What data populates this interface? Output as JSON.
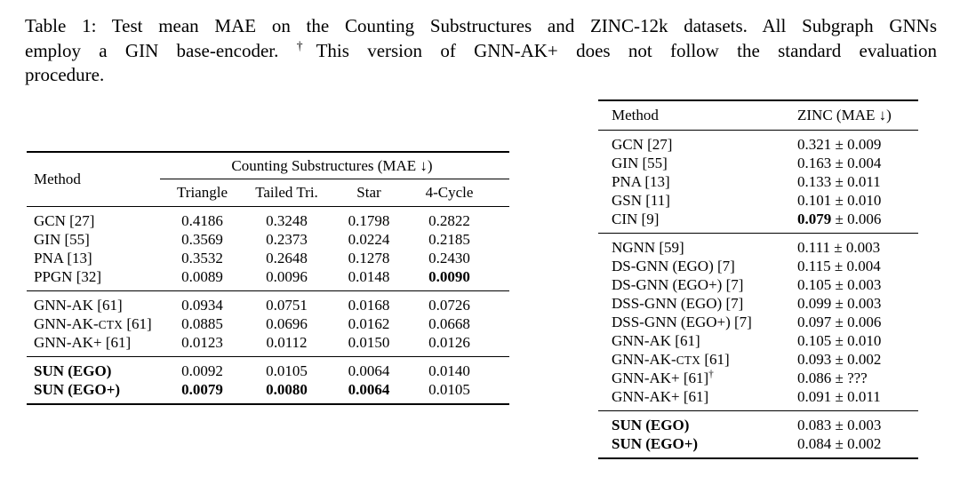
{
  "caption": {
    "label": "Table 1",
    "lines": [
      [
        {
          "t": "Table 1: Test mean MAE on the Counting Substructures and ZINC-12k datasets. All Subgraph GNNs"
        }
      ],
      [
        {
          "t": "employ a GIN base-encoder. "
        },
        {
          "t": "†",
          "sup": true
        },
        {
          "t": "This version of GNN-AK+ does not follow the standard evaluation"
        }
      ],
      [
        {
          "t": "procedure."
        }
      ]
    ]
  },
  "left_table": {
    "method_header": "Method",
    "span_header": "Counting Substructures (MAE ↓)",
    "columns": [
      "Triangle",
      "Tailed Tri.",
      "Star",
      "4-Cycle"
    ],
    "groups": [
      [
        {
          "method": [
            {
              "t": "GCN [27]"
            }
          ],
          "values": [
            [
              {
                "t": "0.4186"
              }
            ],
            [
              {
                "t": "0.3248"
              }
            ],
            [
              {
                "t": "0.1798"
              }
            ],
            [
              {
                "t": "0.2822"
              }
            ]
          ]
        },
        {
          "method": [
            {
              "t": "GIN [55]"
            }
          ],
          "values": [
            [
              {
                "t": "0.3569"
              }
            ],
            [
              {
                "t": "0.2373"
              }
            ],
            [
              {
                "t": "0.0224"
              }
            ],
            [
              {
                "t": "0.2185"
              }
            ]
          ]
        },
        {
          "method": [
            {
              "t": "PNA [13]"
            }
          ],
          "values": [
            [
              {
                "t": "0.3532"
              }
            ],
            [
              {
                "t": "0.2648"
              }
            ],
            [
              {
                "t": "0.1278"
              }
            ],
            [
              {
                "t": "0.2430"
              }
            ]
          ]
        },
        {
          "method": [
            {
              "t": "PPGN [32]"
            }
          ],
          "values": [
            [
              {
                "t": "0.0089"
              }
            ],
            [
              {
                "t": "0.0096"
              }
            ],
            [
              {
                "t": "0.0148"
              }
            ],
            [
              {
                "t": "0.0090",
                "b": true
              }
            ]
          ]
        }
      ],
      [
        {
          "method": [
            {
              "t": "GNN-AK [61]"
            }
          ],
          "values": [
            [
              {
                "t": "0.0934"
              }
            ],
            [
              {
                "t": "0.0751"
              }
            ],
            [
              {
                "t": "0.0168"
              }
            ],
            [
              {
                "t": "0.0726"
              }
            ]
          ]
        },
        {
          "method": [
            {
              "t": "GNN-AK-"
            },
            {
              "t": "CTX",
              "sc": true
            },
            {
              "t": " [61]"
            }
          ],
          "values": [
            [
              {
                "t": "0.0885"
              }
            ],
            [
              {
                "t": "0.0696"
              }
            ],
            [
              {
                "t": "0.0162"
              }
            ],
            [
              {
                "t": "0.0668"
              }
            ]
          ]
        },
        {
          "method": [
            {
              "t": "GNN-AK+ [61]"
            }
          ],
          "values": [
            [
              {
                "t": "0.0123"
              }
            ],
            [
              {
                "t": "0.0112"
              }
            ],
            [
              {
                "t": "0.0150"
              }
            ],
            [
              {
                "t": "0.0126"
              }
            ]
          ]
        }
      ],
      [
        {
          "method": [
            {
              "t": "SUN (EGO)",
              "b": true
            }
          ],
          "values": [
            [
              {
                "t": "0.0092"
              }
            ],
            [
              {
                "t": "0.0105"
              }
            ],
            [
              {
                "t": "0.0064"
              }
            ],
            [
              {
                "t": "0.0140"
              }
            ]
          ]
        },
        {
          "method": [
            {
              "t": "SUN (EGO+)",
              "b": true
            }
          ],
          "values": [
            [
              {
                "t": "0.0079",
                "b": true
              }
            ],
            [
              {
                "t": "0.0080",
                "b": true
              }
            ],
            [
              {
                "t": "0.0064",
                "b": true
              }
            ],
            [
              {
                "t": "0.0105"
              }
            ]
          ]
        }
      ]
    ]
  },
  "right_table": {
    "method_header": "Method",
    "value_header": "ZINC (MAE ↓)",
    "groups": [
      [
        {
          "method": [
            {
              "t": "GCN [27]"
            }
          ],
          "values": [
            [
              {
                "t": "0.321 ± 0.009"
              }
            ]
          ]
        },
        {
          "method": [
            {
              "t": "GIN [55]"
            }
          ],
          "values": [
            [
              {
                "t": "0.163 ± 0.004"
              }
            ]
          ]
        },
        {
          "method": [
            {
              "t": "PNA [13]"
            }
          ],
          "values": [
            [
              {
                "t": "0.133 ± 0.011"
              }
            ]
          ]
        },
        {
          "method": [
            {
              "t": "GSN [11]"
            }
          ],
          "values": [
            [
              {
                "t": "0.101 ± 0.010"
              }
            ]
          ]
        },
        {
          "method": [
            {
              "t": "CIN [9]"
            }
          ],
          "values": [
            [
              {
                "t": "0.079",
                "b": true
              },
              {
                "t": " ± 0.006"
              }
            ]
          ]
        }
      ],
      [
        {
          "method": [
            {
              "t": "NGNN [59]"
            }
          ],
          "values": [
            [
              {
                "t": "0.111 ± 0.003"
              }
            ]
          ]
        },
        {
          "method": [
            {
              "t": "DS-GNN (EGO) [7]"
            }
          ],
          "values": [
            [
              {
                "t": "0.115 ± 0.004"
              }
            ]
          ]
        },
        {
          "method": [
            {
              "t": "DS-GNN (EGO+) [7]"
            }
          ],
          "values": [
            [
              {
                "t": "0.105 ± 0.003"
              }
            ]
          ]
        },
        {
          "method": [
            {
              "t": "DSS-GNN (EGO) [7]"
            }
          ],
          "values": [
            [
              {
                "t": "0.099 ± 0.003"
              }
            ]
          ]
        },
        {
          "method": [
            {
              "t": "DSS-GNN (EGO+) [7]"
            }
          ],
          "values": [
            [
              {
                "t": "0.097 ± 0.006"
              }
            ]
          ]
        },
        {
          "method": [
            {
              "t": "GNN-AK [61]"
            }
          ],
          "values": [
            [
              {
                "t": "0.105 ± 0.010"
              }
            ]
          ]
        },
        {
          "method": [
            {
              "t": "GNN-AK-"
            },
            {
              "t": "CTX",
              "sc": true
            },
            {
              "t": " [61]"
            }
          ],
          "values": [
            [
              {
                "t": "0.093 ± 0.002"
              }
            ]
          ]
        },
        {
          "method": [
            {
              "t": "GNN-AK+ [61]"
            },
            {
              "t": "†",
              "sup": true
            }
          ],
          "values": [
            [
              {
                "t": "0.086 ± ???"
              }
            ]
          ]
        },
        {
          "method": [
            {
              "t": "GNN-AK+ [61]"
            }
          ],
          "values": [
            [
              {
                "t": "0.091 ± 0.011"
              }
            ]
          ]
        }
      ],
      [
        {
          "method": [
            {
              "t": "SUN (EGO)",
              "b": true
            }
          ],
          "values": [
            [
              {
                "t": "0.083 ± 0.003"
              }
            ]
          ]
        },
        {
          "method": [
            {
              "t": "SUN (EGO+)",
              "b": true
            }
          ],
          "values": [
            [
              {
                "t": "0.084 ± 0.002"
              }
            ]
          ]
        }
      ]
    ]
  }
}
